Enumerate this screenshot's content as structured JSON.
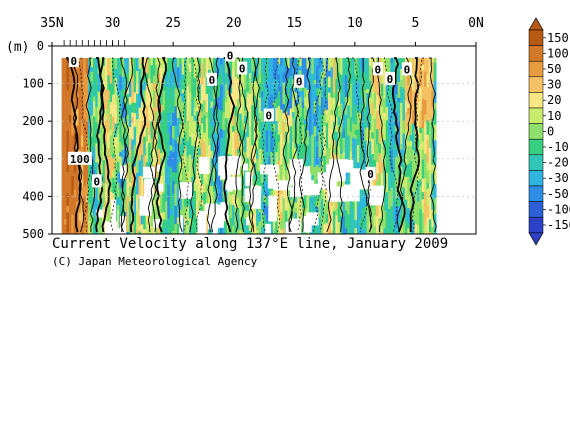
{
  "chart_data": {
    "type": "heatmap",
    "title": "Current Velocity along 137°E line, January 2009",
    "credit": "(C) Japan Meteorological Agency",
    "ylabel": "(m)",
    "x_ticks": [
      "35N",
      "30",
      "25",
      "20",
      "15",
      "10",
      "5",
      "0N"
    ],
    "x_tick_values": [
      35,
      30,
      25,
      20,
      15,
      10,
      5,
      0
    ],
    "xlim": [
      35,
      0
    ],
    "y_ticks": [
      "0",
      "100",
      "200",
      "300",
      "400",
      "500"
    ],
    "y_tick_values": [
      0,
      100,
      200,
      300,
      400,
      500
    ],
    "ylim": [
      0,
      500
    ],
    "colorbar": {
      "levels": [
        "150",
        "100",
        "50",
        "30",
        "20",
        "10",
        "0",
        "-10",
        "-20",
        "-30",
        "-50",
        "-100",
        "-150"
      ],
      "colors": [
        "#b85a14",
        "#d2782a",
        "#e79b3f",
        "#f5c263",
        "#f6e784",
        "#c9ec6c",
        "#8fe06a",
        "#37d080",
        "#30c6b8",
        "#2fb5df",
        "#2f8de6",
        "#2d5fd6",
        "#2d40c8"
      ]
    },
    "contour_labels": [
      {
        "text": "0",
        "lat": 33.2,
        "depth": 40
      },
      {
        "text": "0",
        "lat": 21.8,
        "depth": 90
      },
      {
        "text": "0",
        "lat": 19.3,
        "depth": 60
      },
      {
        "text": "0",
        "lat": 20.3,
        "depth": 25
      },
      {
        "text": "0",
        "lat": 14.6,
        "depth": 95
      },
      {
        "text": "0",
        "lat": 17.1,
        "depth": 185
      },
      {
        "text": "0",
        "lat": 8.1,
        "depth": 62
      },
      {
        "text": "0",
        "lat": 7.1,
        "depth": 88
      },
      {
        "text": "0",
        "lat": 5.7,
        "depth": 62
      },
      {
        "text": "0",
        "lat": 8.7,
        "depth": 340
      },
      {
        "text": "100",
        "lat": 32.7,
        "depth": 300
      },
      {
        "text": "0",
        "lat": 31.3,
        "depth": 360
      }
    ]
  }
}
